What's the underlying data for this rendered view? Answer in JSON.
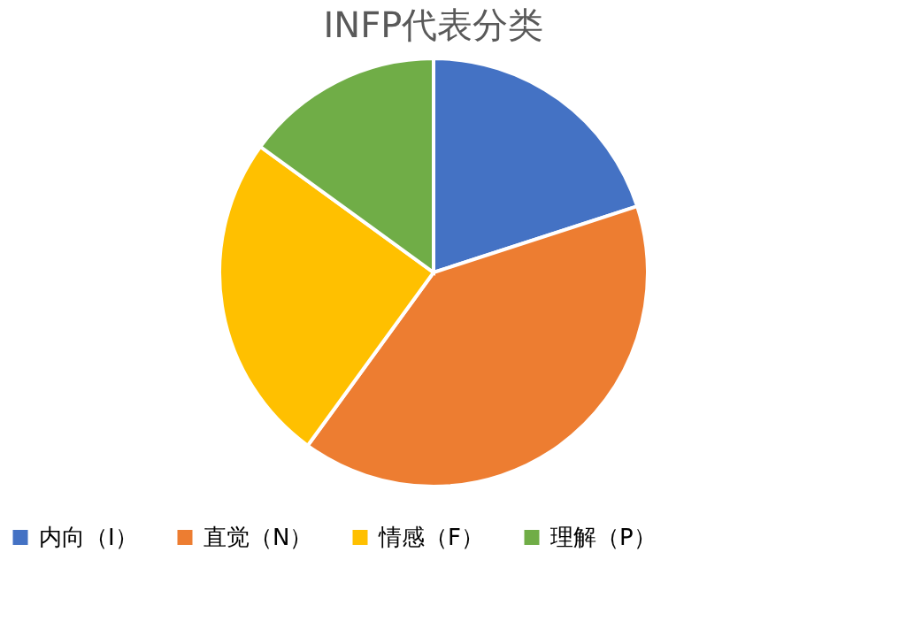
{
  "chart_data": {
    "type": "pie",
    "title": "INFP代表分类",
    "categories": [
      "内向（I）",
      "直觉（N）",
      "情感（F）",
      "理解（P）"
    ],
    "values": [
      20,
      40,
      25,
      15
    ],
    "colors": [
      "#4472c4",
      "#ed7d31",
      "#ffc000",
      "#70ad47"
    ],
    "legend": "bottom"
  }
}
